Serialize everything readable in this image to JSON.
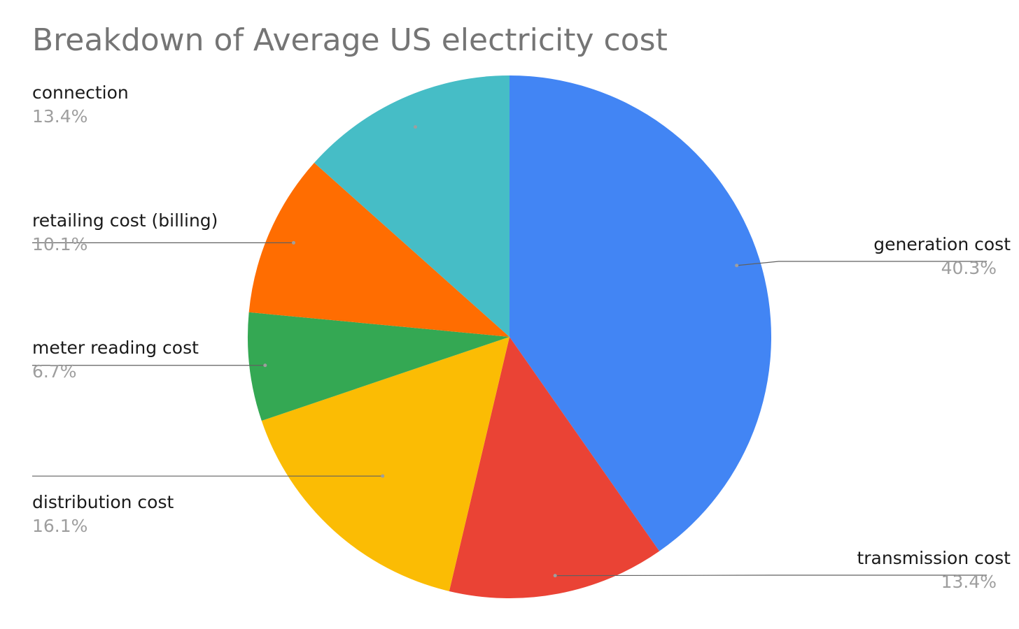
{
  "chart_data": {
    "type": "pie",
    "title": "Breakdown of Average US electricity cost",
    "start_angle_deg": 0,
    "direction": "clockwise",
    "slices": [
      {
        "label": "generation cost",
        "value": 40.3,
        "display": "40.3%",
        "color": "#4285F4",
        "label_side": "right"
      },
      {
        "label": "transmission cost",
        "value": 13.4,
        "display": "13.4%",
        "color": "#EA4335",
        "label_side": "right"
      },
      {
        "label": "distribution cost",
        "value": 16.1,
        "display": "16.1%",
        "color": "#FBBC04",
        "label_side": "left"
      },
      {
        "label": "meter reading cost",
        "value": 6.7,
        "display": "6.7%",
        "color": "#34A853",
        "label_side": "left"
      },
      {
        "label": "retailing cost (billing)",
        "value": 10.1,
        "display": "10.1%",
        "color": "#FF6D01",
        "label_side": "left"
      },
      {
        "label": "connection",
        "value": 13.4,
        "display": "13.4%",
        "color": "#46BDC6",
        "label_side": "left"
      }
    ]
  }
}
